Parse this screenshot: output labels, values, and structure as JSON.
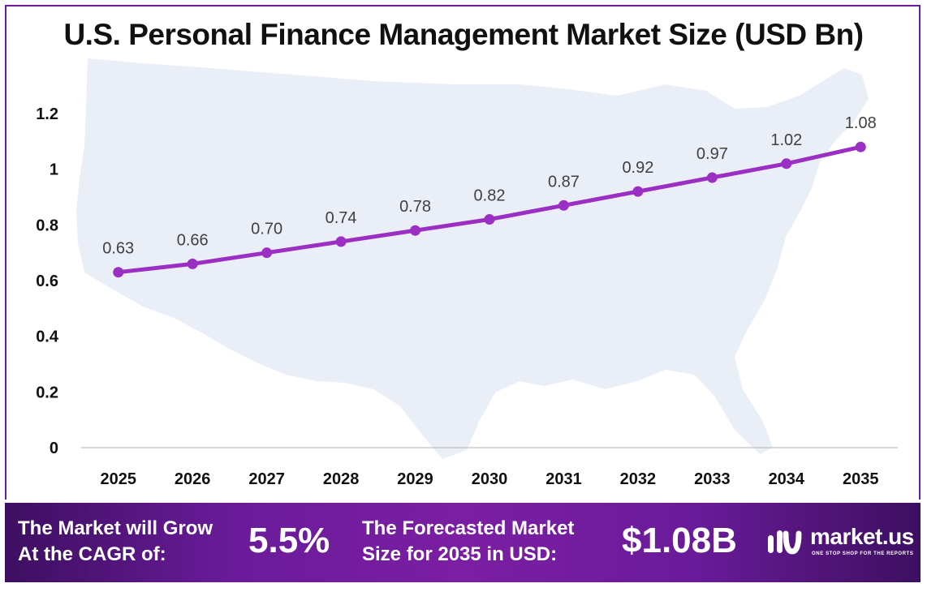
{
  "chart_data": {
    "type": "line",
    "title": "U.S. Personal Finance Management Market Size (USD Bn)",
    "xlabel": "",
    "ylabel": "",
    "categories": [
      "2025",
      "2026",
      "2027",
      "2028",
      "2029",
      "2030",
      "2031",
      "2032",
      "2033",
      "2034",
      "2035"
    ],
    "values": [
      0.63,
      0.66,
      0.7,
      0.74,
      0.78,
      0.82,
      0.87,
      0.92,
      0.97,
      1.02,
      1.08
    ],
    "data_labels": [
      "0.63",
      "0.66",
      "0.70",
      "0.74",
      "0.78",
      "0.82",
      "0.87",
      "0.92",
      "0.97",
      "1.02",
      "1.08"
    ],
    "ylim": [
      0,
      1.2
    ],
    "yticks": [
      0,
      0.2,
      0.4,
      0.6,
      0.8,
      1,
      1.2
    ],
    "ytick_labels": [
      "0",
      "0.2",
      "0.4",
      "0.6",
      "0.8",
      "1",
      "1.2"
    ],
    "grid": false,
    "line_color": "#9b2fc4",
    "background_image": "usa-map"
  },
  "footer": {
    "cagr_text_line1": "The Market will Grow",
    "cagr_text_line2": "At the CAGR of:",
    "cagr_value": "5.5%",
    "forecast_text_line1": "The Forecasted Market",
    "forecast_text_line2": "Size for 2035 in USD:",
    "forecast_value": "$1.08B",
    "logo_name": "market.us",
    "logo_tagline": "ONE STOP SHOP FOR THE REPORTS",
    "background_color": "#6a1b9a"
  }
}
